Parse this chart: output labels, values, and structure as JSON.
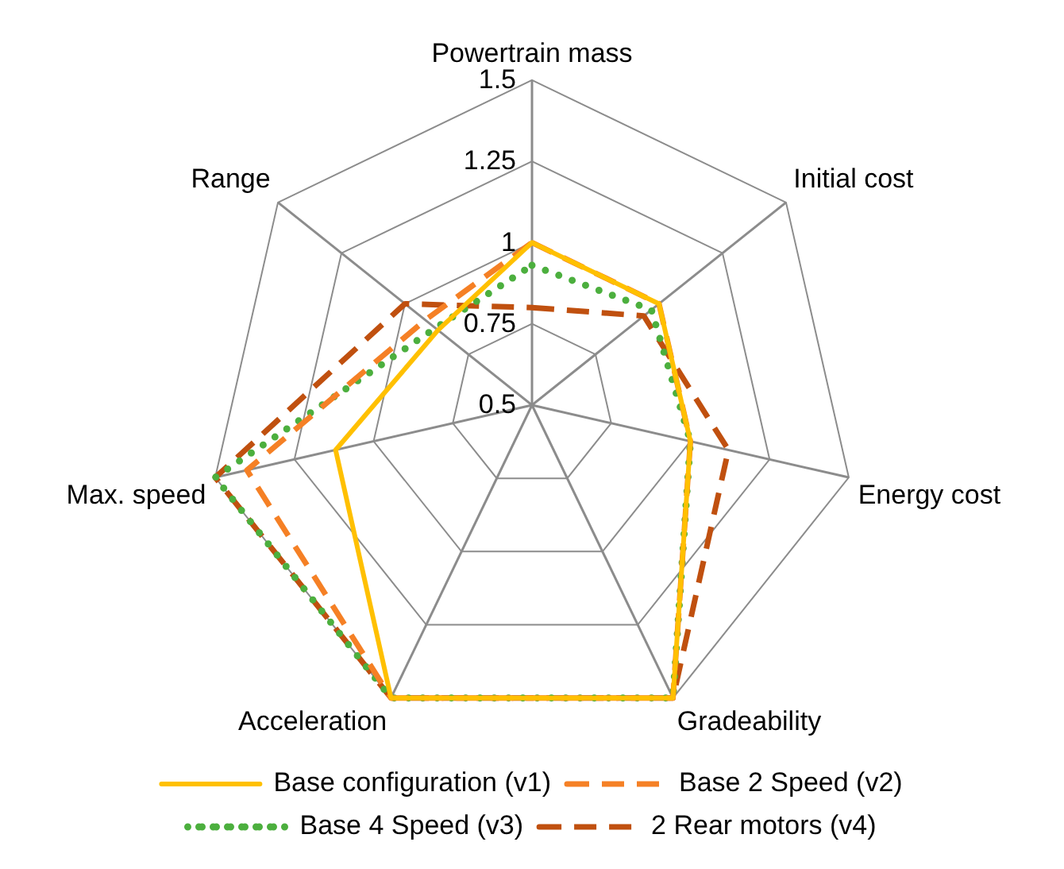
{
  "chart_data": {
    "type": "radar",
    "categories": [
      "Powertrain mass",
      "Initial cost",
      "Energy cost",
      "Gradeability",
      "Acceleration",
      "Max. speed",
      "Range"
    ],
    "ylim": [
      0.5,
      1.5
    ],
    "yticks": [
      0.5,
      0.75,
      1,
      1.25,
      1.5
    ],
    "grid": true,
    "legend": "bottom",
    "marker": "none",
    "series": [
      {
        "name": "Base configuration (v1)",
        "color": "#ffc000",
        "line_style": "solid",
        "values": [
          1.0,
          1.0,
          1.0,
          1.5,
          1.5,
          1.12,
          0.87
        ]
      },
      {
        "name": "Base 2 Speed (v2)",
        "color": "#f58025",
        "line_style": "dashed",
        "values": [
          1.0,
          1.0,
          1.0,
          1.5,
          1.5,
          1.4,
          0.92
        ]
      },
      {
        "name": "Base 4 Speed (v3)",
        "color": "#4caf3e",
        "line_style": "dotted",
        "values": [
          0.93,
          0.97,
          1.0,
          1.5,
          1.5,
          1.5,
          0.88
        ]
      },
      {
        "name": "2 Rear motors (v4)",
        "color": "#c0500f",
        "line_style": "dashed",
        "values": [
          0.8,
          0.94,
          1.12,
          1.5,
          1.5,
          1.5,
          1.0
        ]
      }
    ]
  }
}
